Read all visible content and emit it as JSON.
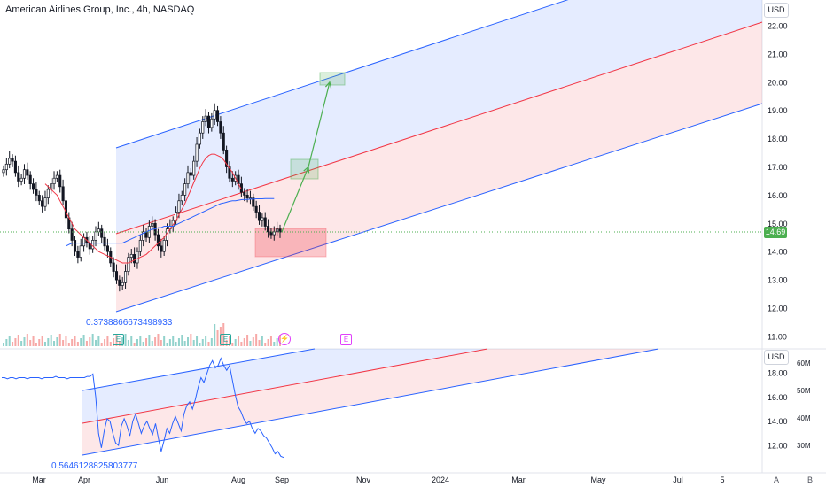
{
  "header": {
    "title": "American Airlines Group, Inc., 4h, NASDAQ"
  },
  "price_axis": {
    "currency": "USD",
    "current_price": "14.69"
  },
  "lower_pane": {
    "currency": "USD"
  },
  "fib_labels": {
    "upper": "0.3738866673498933",
    "lower": "0.5646128825803777"
  },
  "events": [
    {
      "symbol": "E"
    },
    {
      "symbol": "E"
    },
    {
      "symbol": "⚡"
    },
    {
      "symbol": "E"
    }
  ],
  "bottom_buttons": {
    "auto": "A",
    "log": "B"
  },
  "colors": {
    "up": "#26a69a",
    "down": "#ef5350",
    "candles": "#131722",
    "ma_red": "#f23645",
    "ma_blue": "#2962ff",
    "channel_blue": "#2962ff",
    "channel_red": "#f23645",
    "current_price": "#4caf50"
  },
  "chart_data": [
    {
      "type": "candlestick",
      "title": "American Airlines Group, Inc., 4h, NASDAQ",
      "x_ticks": [
        "Mar",
        "Apr",
        "Jun",
        "Aug",
        "Sep",
        "Nov",
        "2024",
        "Mar",
        "May",
        "Jul",
        "5",
        "A",
        "B"
      ],
      "y_ticks": [
        "22.00",
        "21.00",
        "20.00",
        "19.00",
        "18.00",
        "17.00",
        "16.00",
        "15.00",
        "14.00",
        "13.00",
        "12.00",
        "11.00"
      ],
      "ylim": [
        10.8,
        22.6
      ],
      "last_price": 14.69,
      "closes": [
        16.9,
        17.1,
        17.3,
        17.2,
        16.8,
        16.5,
        16.6,
        16.9,
        16.7,
        16.4,
        16.2,
        16.0,
        15.8,
        15.6,
        15.9,
        16.2,
        16.4,
        16.6,
        16.7,
        16.3,
        15.8,
        15.2,
        14.8,
        14.4,
        14.0,
        13.8,
        14.2,
        14.5,
        14.3,
        14.1,
        14.4,
        14.7,
        14.8,
        14.5,
        14.2,
        14.0,
        13.6,
        13.3,
        13.0,
        12.8,
        12.9,
        13.3,
        13.8,
        13.9,
        13.6,
        14.0,
        14.4,
        14.7,
        14.5,
        14.9,
        15.0,
        14.6,
        14.2,
        14.0,
        14.4,
        14.8,
        14.9,
        15.1,
        15.4,
        15.8,
        16.0,
        16.4,
        16.8,
        16.7,
        17.2,
        17.8,
        18.2,
        18.6,
        18.8,
        18.4,
        18.7,
        19.0,
        18.6,
        18.2,
        17.6,
        17.0,
        16.6,
        16.5,
        16.7,
        16.4,
        16.1,
        16.0,
        15.9,
        15.9,
        15.6,
        15.4,
        15.1,
        15.2,
        14.9,
        14.7,
        14.6,
        14.7,
        14.8,
        14.69
      ],
      "series": [
        {
          "name": "MA red",
          "values": [
            null,
            null,
            null,
            null,
            null,
            null,
            null,
            null,
            null,
            null,
            null,
            null,
            null,
            null,
            16.4,
            16.3,
            16.2,
            16.1,
            16.0,
            15.8,
            15.6,
            15.4,
            15.2,
            15.0,
            14.8,
            14.7,
            14.6,
            14.5,
            14.4,
            14.3,
            14.2,
            14.1,
            14.0,
            13.95,
            13.9,
            13.85,
            13.8,
            13.75,
            13.7,
            13.65,
            13.6,
            13.6,
            13.6,
            13.65,
            13.7,
            13.75,
            13.8,
            13.85,
            13.9,
            14.0,
            14.1,
            14.2,
            14.3,
            14.4,
            14.5,
            14.65,
            14.8,
            14.95,
            15.1,
            15.3,
            15.5,
            15.7,
            15.95,
            16.2,
            16.45,
            16.7,
            16.95,
            17.15,
            17.3,
            17.4,
            17.45,
            17.45,
            17.4,
            17.35,
            17.25,
            17.1,
            16.95,
            16.8,
            16.6,
            16.4,
            16.2
          ]
        },
        {
          "name": "MA blue",
          "values": [
            null,
            null,
            null,
            null,
            null,
            null,
            null,
            null,
            null,
            null,
            null,
            null,
            null,
            null,
            null,
            null,
            null,
            null,
            null,
            null,
            null,
            14.2,
            14.25,
            14.3,
            14.3,
            14.3,
            14.3,
            14.3,
            14.3,
            14.3,
            14.3,
            14.3,
            14.3,
            14.3,
            14.3,
            14.3,
            14.3,
            14.3,
            14.3,
            14.3,
            14.3,
            14.35,
            14.4,
            14.45,
            14.5,
            14.55,
            14.6,
            14.65,
            14.7,
            14.75,
            14.8,
            14.8,
            14.85,
            14.85,
            14.9,
            14.9,
            14.9,
            14.9,
            14.95,
            15.0,
            15.05,
            15.1,
            15.15,
            15.2,
            15.25,
            15.3,
            15.35,
            15.4,
            15.45,
            15.5,
            15.55,
            15.6,
            15.65,
            15.7,
            15.72,
            15.75,
            15.78,
            15.8,
            15.8,
            15.82,
            15.84,
            15.85,
            15.85,
            15.86,
            15.86,
            15.87,
            15.87,
            15.87,
            15.88,
            15.88,
            15.88,
            15.88
          ]
        }
      ],
      "projection": [
        {
          "from": 14.7,
          "to": 17.0
        },
        {
          "from": 17.0,
          "to": 20.0
        }
      ]
    },
    {
      "type": "line",
      "y_ticks": [
        "18.00",
        "16.00",
        "14.00",
        "12.00"
      ],
      "volume_ticks": [
        "60M",
        "50M",
        "40M",
        "30M"
      ],
      "ylim": [
        10.8,
        19.2
      ],
      "values": [
        17.6,
        17.6,
        17.5,
        17.6,
        17.6,
        17.5,
        17.6,
        17.6,
        17.6,
        17.5,
        17.6,
        17.6,
        17.6,
        17.6,
        17.5,
        17.6,
        17.6,
        17.6,
        17.6,
        17.7,
        17.6,
        17.6,
        17.6,
        17.5,
        17.6,
        17.6,
        17.6,
        17.6,
        17.6,
        17.6,
        17.7,
        17.7,
        17.9,
        16.0,
        13.0,
        11.8,
        13.2,
        14.2,
        14.0,
        13.0,
        12.2,
        12.0,
        13.6,
        14.2,
        13.6,
        12.8,
        14.0,
        14.6,
        13.8,
        13.0,
        13.6,
        14.0,
        13.4,
        12.9,
        13.8,
        12.6,
        11.5,
        12.4,
        13.4,
        13.0,
        13.8,
        14.4,
        13.8,
        13.2,
        14.6,
        15.3,
        15.6,
        15.0,
        15.8,
        16.8,
        17.6,
        17.2,
        17.9,
        18.6,
        19.0,
        18.4,
        18.6,
        19.2,
        18.6,
        18.2,
        18.6,
        17.4,
        16.2,
        15.2,
        14.8,
        14.2,
        13.8,
        14.0,
        13.4,
        13.0,
        13.4,
        13.2,
        12.8,
        12.6,
        12.2,
        11.8,
        11.3,
        11.5,
        11.1,
        11.0
      ]
    }
  ]
}
